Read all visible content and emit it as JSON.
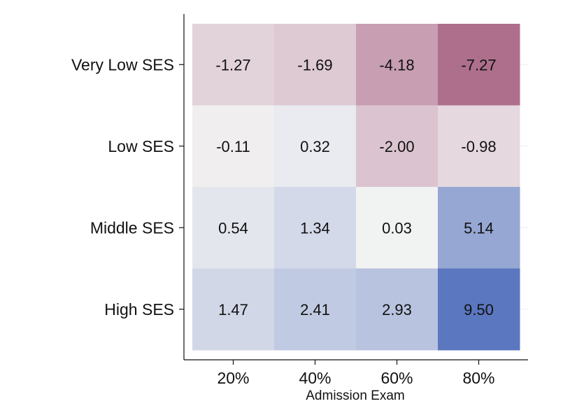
{
  "chart_data": {
    "type": "heatmap",
    "title": "",
    "xlabel": "Admission Exam",
    "ylabel": "",
    "x_categories": [
      "20%",
      "40%",
      "60%",
      "80%"
    ],
    "y_categories": [
      "Very Low SES",
      "Low SES",
      "Middle SES",
      "High SES"
    ],
    "values": [
      [
        -1.27,
        -1.69,
        -4.18,
        -7.27
      ],
      [
        -0.11,
        0.32,
        -2.0,
        -0.98
      ],
      [
        0.54,
        1.34,
        0.03,
        5.14
      ],
      [
        1.47,
        2.41,
        2.93,
        9.5
      ]
    ],
    "value_labels": [
      [
        "-1.27",
        "-1.69",
        "-4.18",
        "-7.27"
      ],
      [
        "-0.11",
        "0.32",
        "-2.00",
        "-0.98"
      ],
      [
        "0.54",
        "1.34",
        "0.03",
        "5.14"
      ],
      [
        "1.47",
        "2.41",
        "2.93",
        "9.50"
      ]
    ],
    "colors": {
      "negative": "#9e4f75",
      "neutral": "#f3f3f3",
      "positive": "#5b77bf",
      "grid": "#eeeeee",
      "axis": "#111111"
    },
    "grid": true,
    "legend": "none"
  }
}
